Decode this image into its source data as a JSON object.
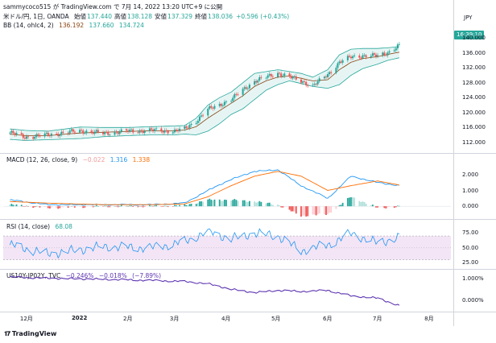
{
  "header": {
    "publisher": "sammycoco515",
    "via": "が TradingView.com で 7月 14, 2022 13:20 UTC+9 に公開"
  },
  "main_pane": {
    "symbol": "米ドル/円, 1日, OANDA",
    "ohlc": [
      {
        "label": "始値",
        "value": "137.440"
      },
      {
        "label": "高値",
        "value": "138.128"
      },
      {
        "label": "安値",
        "value": "137.329"
      },
      {
        "label": "終値",
        "value": "138.036"
      },
      {
        "label": "",
        "value": "+0.596 (+0.43%)"
      }
    ],
    "bb_title": "BB (14, ohlc4, 2)",
    "bb_values": [
      "136.192",
      "137.660",
      "134.724"
    ],
    "currency": "JPY",
    "last_price_tag": "16:39:10",
    "y_ticks": [
      "140.000",
      "136.000",
      "132.000",
      "128.000",
      "124.000",
      "120.000",
      "116.000",
      "112.000"
    ]
  },
  "macd_pane": {
    "title": "MACD (12, 26, close, 9)",
    "values": [
      "−0.022",
      "1.316",
      "1.338"
    ],
    "y_ticks": [
      "2.000",
      "1.000",
      "0.000"
    ]
  },
  "rsi_pane": {
    "title": "RSI (14, close)",
    "value": "68.08",
    "y_ticks": [
      "75.00",
      "50.00",
      "25.00"
    ]
  },
  "spread_pane": {
    "title": "US10Y-JP02Y, TVC",
    "values": [
      "−0.246%",
      "−0.018%",
      "(−7.89%)"
    ],
    "y_ticks": [
      "1.000%",
      "0.000%"
    ]
  },
  "x_axis": {
    "labels": [
      "12月",
      "2022",
      "2月",
      "3月",
      "4月",
      "5月",
      "6月",
      "7月",
      "8月"
    ]
  },
  "footer": {
    "brand": "TradingView"
  },
  "colors": {
    "up": "#26a69a",
    "down": "#ef5350",
    "bb_basis": "#8b4513",
    "bb_band": "#26a69a",
    "bb_fill": "#e0f2f1",
    "macd": "#2196f3",
    "signal": "#ff6d00",
    "rsi": "#2196f3",
    "rsi_band": "#f3e5f5",
    "spread": "#5e35b1"
  },
  "chart_data": [
    {
      "type": "candlestick",
      "title": "米ドル/円, 1日, OANDA",
      "x": [
        "2021-11-22",
        "2021-12-01",
        "2021-12-15",
        "2022-01-03",
        "2022-01-17",
        "2022-02-01",
        "2022-02-15",
        "2022-03-01",
        "2022-03-07",
        "2022-03-14",
        "2022-03-21",
        "2022-03-28",
        "2022-04-04",
        "2022-04-11",
        "2022-04-18",
        "2022-04-25",
        "2022-05-02",
        "2022-05-09",
        "2022-05-16",
        "2022-05-23",
        "2022-06-01",
        "2022-06-08",
        "2022-06-15",
        "2022-06-22",
        "2022-07-01",
        "2022-07-07",
        "2022-07-14"
      ],
      "close": [
        114.6,
        113.4,
        114.0,
        115.1,
        114.4,
        115.0,
        115.2,
        115.0,
        115.6,
        117.8,
        120.8,
        122.1,
        123.5,
        126.1,
        128.4,
        129.5,
        130.6,
        129.5,
        128.5,
        127.1,
        130.2,
        133.5,
        134.9,
        135.3,
        135.2,
        136.1,
        138.0
      ],
      "bb_upper": [
        115.6,
        115.2,
        115.0,
        116.1,
        116.0,
        116.0,
        116.2,
        116.4,
        116.5,
        118.5,
        122.0,
        124.0,
        125.5,
        128.0,
        130.5,
        131.0,
        131.5,
        131.0,
        130.5,
        129.5,
        131.5,
        135.5,
        137.0,
        137.2,
        137.2,
        137.4,
        137.7
      ],
      "bb_basis": [
        114.2,
        113.8,
        113.8,
        114.5,
        114.7,
        114.9,
        115.1,
        115.1,
        115.3,
        116.2,
        118.5,
        120.5,
        122.5,
        124.5,
        127.0,
        128.5,
        129.5,
        129.8,
        129.2,
        128.5,
        128.8,
        131.5,
        133.5,
        134.5,
        135.0,
        135.6,
        136.2
      ],
      "bb_lower": [
        112.8,
        112.5,
        112.7,
        113.0,
        113.5,
        113.8,
        114.0,
        114.0,
        114.2,
        114.0,
        115.0,
        117.0,
        119.5,
        121.0,
        123.5,
        126.0,
        127.5,
        128.5,
        127.8,
        127.0,
        126.5,
        127.5,
        130.0,
        131.8,
        133.0,
        134.0,
        134.7
      ],
      "ylim": [
        110,
        142
      ]
    },
    {
      "type": "line",
      "title": "MACD (12, 26, close, 9)",
      "x": [
        "2021-11-22",
        "2021-12-15",
        "2022-01-17",
        "2022-02-15",
        "2022-03-07",
        "2022-03-21",
        "2022-04-04",
        "2022-04-18",
        "2022-05-02",
        "2022-05-16",
        "2022-06-01",
        "2022-06-15",
        "2022-07-01",
        "2022-07-14"
      ],
      "series": [
        {
          "name": "MACD",
          "values": [
            0.4,
            0.1,
            0.1,
            0.1,
            0.2,
            1.0,
            1.7,
            2.2,
            2.3,
            1.3,
            0.5,
            1.9,
            1.5,
            1.3
          ]
        },
        {
          "name": "Signal",
          "values": [
            0.3,
            0.2,
            0.1,
            0.1,
            0.15,
            0.6,
            1.3,
            1.9,
            2.2,
            1.9,
            1.0,
            1.3,
            1.6,
            1.34
          ]
        },
        {
          "name": "Histogram",
          "values": [
            0.1,
            -0.1,
            0.0,
            0.0,
            0.05,
            0.4,
            0.4,
            0.3,
            0.1,
            -0.6,
            -0.5,
            0.6,
            -0.1,
            -0.02
          ]
        }
      ],
      "ylim": [
        -0.6,
        2.6
      ]
    },
    {
      "type": "line",
      "title": "RSI (14, close)",
      "x": [
        "2021-11-22",
        "2021-12-15",
        "2022-01-17",
        "2022-02-15",
        "2022-03-07",
        "2022-03-21",
        "2022-04-04",
        "2022-04-18",
        "2022-05-02",
        "2022-05-16",
        "2022-06-01",
        "2022-06-15",
        "2022-07-01",
        "2022-07-14"
      ],
      "series": [
        {
          "name": "RSI",
          "values": [
            55,
            40,
            52,
            50,
            60,
            78,
            65,
            75,
            70,
            45,
            55,
            74,
            58,
            68.08
          ]
        }
      ],
      "band": [
        30,
        70
      ],
      "ylim": [
        20,
        85
      ]
    },
    {
      "type": "line",
      "title": "US10Y-JP02Y, TVC",
      "x": [
        "2021-11-22",
        "2021-12-15",
        "2022-01-17",
        "2022-02-15",
        "2022-03-07",
        "2022-03-21",
        "2022-04-04",
        "2022-04-18",
        "2022-05-02",
        "2022-05-16",
        "2022-06-01",
        "2022-06-15",
        "2022-07-01",
        "2022-07-14"
      ],
      "series": [
        {
          "name": "US10Y-JP02Y",
          "values": [
            1.05,
            1.0,
            0.95,
            0.9,
            0.85,
            0.75,
            0.5,
            0.35,
            0.45,
            0.4,
            0.45,
            0.2,
            0.1,
            -0.246
          ]
        }
      ],
      "ylim": [
        -0.4,
        1.2
      ]
    }
  ]
}
